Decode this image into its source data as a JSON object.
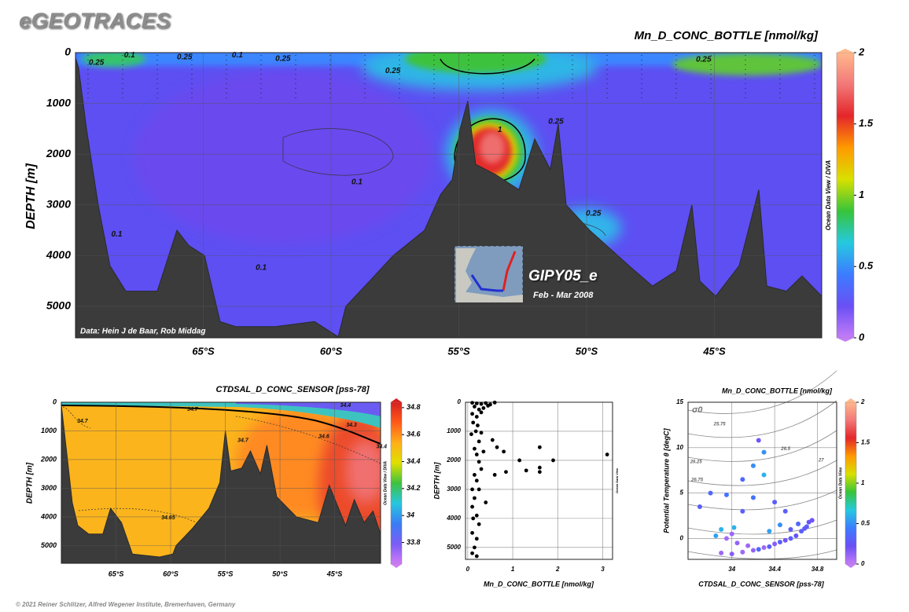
{
  "header": {
    "title": "eGEOTRACES"
  },
  "footer": {
    "text": "© 2021 Reiner Schlitzer, Alfred Wegener Institute, Bremerhaven, Germany"
  },
  "chart_data": [
    {
      "type": "section",
      "title": "Mn_D_CONC_BOTTLE [nmol/kg]",
      "y_label": "DEPTH [m]",
      "xlim": [
        -70,
        -40.8
      ],
      "xticks": [
        {
          "value": -65,
          "label": "65°S"
        },
        {
          "value": -60,
          "label": "60°S"
        },
        {
          "value": -55,
          "label": "55°S"
        },
        {
          "value": -50,
          "label": "50°S"
        },
        {
          "value": -45,
          "label": "45°S"
        }
      ],
      "ylim": [
        5620,
        0
      ],
      "yticks": [
        0,
        1000,
        2000,
        3000,
        4000,
        5000
      ],
      "grid": true,
      "colorbar": {
        "label": "Ocean Data View / DIVA",
        "lim": [
          0,
          2
        ],
        "ticks": [
          0,
          0.5,
          1,
          1.5,
          2
        ],
        "colors": [
          "#c47cf7",
          "#6a4ff5",
          "#3c7cff",
          "#25c9e0",
          "#37c43a",
          "#d8e000",
          "#ff9a00",
          "#e4262a",
          "#f27878",
          "#ffb88c"
        ]
      },
      "bathymetry": {
        "x": [
          -70,
          -69.88,
          -69.57,
          -69.11,
          -68.65,
          -68.03,
          -66.8,
          -66.03,
          -65.57,
          -64.95,
          -64.34,
          -63.72,
          -62.18,
          -60.65,
          -59.72,
          -59.42,
          -58.49,
          -57.57,
          -56.34,
          -55.72,
          -55.26,
          -54.95,
          -54.65,
          -54.34,
          -53.57,
          -52.65,
          -52.03,
          -51.42,
          -51.11,
          -50.8,
          -49.88,
          -48.34,
          -47.42,
          -46.49,
          -45.88,
          -45.57,
          -44.95,
          -44.03,
          -43.26,
          -42.95,
          -42.18,
          -41.57,
          -40.8
        ],
        "depth": [
          100,
          300,
          1500,
          3000,
          4200,
          4700,
          4700,
          3500,
          3800,
          4000,
          5300,
          5400,
          5400,
          5300,
          5600,
          5000,
          4500,
          4000,
          3500,
          2800,
          2500,
          1500,
          950,
          2200,
          2400,
          2700,
          1700,
          2300,
          1400,
          3000,
          3500,
          4200,
          4600,
          4300,
          3000,
          4500,
          4800,
          4200,
          2700,
          4600,
          4700,
          4400,
          4800
        ]
      },
      "contour_labels": [
        {
          "x": -69.48,
          "y": 200,
          "value": 0.25
        },
        {
          "x": -68.1,
          "y": 50,
          "value": 0.1
        },
        {
          "x": -66.03,
          "y": 90,
          "value": 0.25
        },
        {
          "x": -63.88,
          "y": 50,
          "value": 0.1
        },
        {
          "x": -62.18,
          "y": 120,
          "value": 0.25
        },
        {
          "x": -57.88,
          "y": 360,
          "value": 0.25
        },
        {
          "x": -45.72,
          "y": 140,
          "value": 0.25
        },
        {
          "x": -51.5,
          "y": 1360,
          "value": 0.25
        },
        {
          "x": -53.48,
          "y": 1520,
          "value": 1
        },
        {
          "x": -59.2,
          "y": 2550,
          "value": 0.1
        },
        {
          "x": -50.03,
          "y": 3170,
          "value": 0.25
        },
        {
          "x": -68.6,
          "y": 3580,
          "value": 0.1
        },
        {
          "x": -62.95,
          "y": 4240,
          "value": 0.1
        }
      ],
      "annotations": [
        "Data: Hein J de Baar, Rob Middag"
      ],
      "inset": {
        "title": "GIPY05_e",
        "subtitle": "Feb - Mar 2008"
      }
    },
    {
      "type": "section",
      "title": "CTDSAL_D_CONC_SENSOR [pss-78]",
      "y_label": "DEPTH [m]",
      "xlim": [
        -70,
        -40.8
      ],
      "xticks": [
        {
          "value": -65,
          "label": "65°S"
        },
        {
          "value": -60,
          "label": "60°S"
        },
        {
          "value": -55,
          "label": "55°S"
        },
        {
          "value": -50,
          "label": "50°S"
        },
        {
          "value": -45,
          "label": "45°S"
        }
      ],
      "ylim": [
        5620,
        0
      ],
      "yticks": [
        0,
        1000,
        2000,
        3000,
        4000,
        5000
      ],
      "grid": true,
      "colorbar": {
        "label": "Ocean Data View / DIVA",
        "lim": [
          33.64,
          34.84
        ],
        "ticks": [
          33.8,
          34,
          34.2,
          34.4,
          34.6,
          34.8
        ],
        "colors": [
          "#d07cf5",
          "#7a5cf5",
          "#3a7df5",
          "#27c6df",
          "#3fc13f",
          "#dfe000",
          "#ffae1a",
          "#ff5a1a",
          "#d62020"
        ]
      },
      "bathymetry": {
        "x": [
          -70,
          -69.5,
          -69,
          -68.5,
          -67.5,
          -66.2,
          -65.5,
          -64.5,
          -63.5,
          -61,
          -59.8,
          -59.5,
          -58,
          -56.5,
          -55.5,
          -55,
          -54.5,
          -53.5,
          -52.7,
          -51.8,
          -51.2,
          -50.3,
          -48.5,
          -46.5,
          -45.5,
          -44,
          -43.2,
          -42.3,
          -41.5,
          -40.8
        ],
        "depth": [
          100,
          1800,
          3500,
          4300,
          4600,
          4600,
          3700,
          4200,
          5300,
          5400,
          5300,
          5000,
          4400,
          3700,
          2800,
          1000,
          2400,
          2300,
          1700,
          2500,
          1500,
          3300,
          4000,
          4200,
          2900,
          4300,
          3400,
          4200,
          3800,
          4600
        ]
      },
      "contour_labels": [
        {
          "x": -68.56,
          "y": 660,
          "value": 34.7
        },
        {
          "x": -58.49,
          "y": 250,
          "value": 34.7
        },
        {
          "x": -53.88,
          "y": 1330,
          "value": 34.7
        },
        {
          "x": -46.47,
          "y": 1190,
          "value": 34.6
        },
        {
          "x": -43.95,
          "y": 800,
          "value": 34.3
        },
        {
          "x": -41.2,
          "y": 1550,
          "value": 34.4
        },
        {
          "x": -44.5,
          "y": 110,
          "value": 34.4
        },
        {
          "x": -60.86,
          "y": 4030,
          "value": 34.65
        }
      ]
    },
    {
      "type": "scatter",
      "x_label": "Mn_D_CONC_BOTTLE [nmol/kg]",
      "y_label": "DEPTH [m]",
      "watermark": "Ocean Data View",
      "xlim": [
        -0.05,
        3.22
      ],
      "xticks": [
        0,
        1,
        2,
        3
      ],
      "ylim": [
        5410,
        0
      ],
      "yticks": [
        0,
        1000,
        2000,
        3000,
        4000,
        5000
      ],
      "grid": true,
      "color": "#000000",
      "x": [
        0.1,
        0.2,
        0.3,
        0.4,
        0.5,
        0.6,
        0.15,
        0.25,
        0.35,
        0.45,
        0.1,
        0.2,
        0.3,
        0.12,
        0.22,
        0.18,
        0.08,
        0.3,
        0.55,
        0.25,
        0.65,
        0.15,
        0.35,
        0.8,
        0.2,
        1.15,
        0.25,
        1.6,
        1.9,
        3.1,
        1.6,
        1.6,
        1.3,
        0.85,
        0.3,
        0.15,
        0.6,
        0.2,
        0.1,
        0.25,
        0.15,
        0.4,
        0.1,
        0.2,
        0.12,
        0.25,
        0.1,
        0.2,
        0.15,
        0.1,
        0.2
      ],
      "y": [
        20,
        40,
        60,
        30,
        80,
        10,
        150,
        250,
        200,
        120,
        400,
        500,
        350,
        700,
        800,
        1000,
        1100,
        1050,
        1300,
        1350,
        1550,
        1600,
        1700,
        1700,
        1800,
        2000,
        2050,
        1550,
        2000,
        1800,
        2250,
        2400,
        2350,
        2400,
        2300,
        2500,
        2500,
        2700,
        3000,
        3000,
        3300,
        3450,
        3600,
        3900,
        4000,
        4200,
        4500,
        4700,
        5000,
        5200,
        5300
      ]
    },
    {
      "type": "scatter",
      "title": "Mn_D_CONC_BOTTLE [nmol/kg]",
      "x_label": "CTDSAL_D_CONC_SENSOR [pss-78]",
      "y_label": "Potential Temperature θ [degC]",
      "xlim": [
        33.59,
        34.98
      ],
      "xticks": [
        34,
        34.4,
        34.8
      ],
      "ylim": [
        -2.3,
        15
      ],
      "yticks": [
        0,
        5,
        10,
        15
      ],
      "grid": true,
      "colorbar": {
        "label": "Ocean Data View",
        "lim": [
          0,
          2
        ],
        "ticks": [
          0,
          0.5,
          1,
          1.5,
          2
        ],
        "colors": [
          "#c47cf7",
          "#6a4ff5",
          "#3c7cff",
          "#25c9e0",
          "#37c43a",
          "#d8e000",
          "#ff9a00",
          "#e4262a",
          "#f27878",
          "#ffb88c"
        ]
      },
      "density_symbol": "σ0",
      "density_labels": [
        {
          "x": 33.83,
          "y": 12.6,
          "value": 25.75
        },
        {
          "x": 33.61,
          "y": 8.45,
          "value": 26.25
        },
        {
          "x": 33.62,
          "y": 6.45,
          "value": 26.75
        },
        {
          "x": 34.46,
          "y": 9.85,
          "value": 26.5
        },
        {
          "x": 34.81,
          "y": 8.6,
          "value": 27
        }
      ],
      "x": [
        33.9,
        34.0,
        34.1,
        34.2,
        34.3,
        34.4,
        34.5,
        34.6,
        34.65,
        34.7,
        34.72,
        34.75,
        34.68,
        34.55,
        34.45,
        34.35,
        34.25,
        34.0,
        33.95,
        34.05,
        33.85,
        33.9,
        34.02,
        33.95,
        34.1,
        34.2,
        34.3,
        34.25,
        34.3,
        34.2,
        34.4,
        34.5,
        34.1,
        33.8,
        33.7,
        34.45,
        34.35,
        34.15,
        34.55,
        34.62
      ],
      "y": [
        -1.6,
        -1.7,
        -1.5,
        -1.3,
        -1.0,
        -0.6,
        -0.2,
        0.3,
        0.8,
        1.3,
        1.8,
        2.0,
        1.1,
        0,
        -0.4,
        -0.9,
        -1.2,
        0.5,
        0,
        -0.5,
        0.3,
        1.0,
        1.2,
        4.8,
        6.5,
        8.0,
        9.5,
        10.8,
        7.0,
        4.5,
        4.0,
        3.0,
        3.0,
        5.0,
        3.5,
        1.5,
        0.8,
        -0.8,
        1.0,
        1.6
      ],
      "color_values": [
        0.1,
        0.15,
        0.1,
        0.12,
        0.1,
        0.15,
        0.2,
        0.25,
        0.3,
        0.3,
        0.25,
        0.2,
        0.28,
        0.3,
        0.3,
        0.3,
        0.35,
        0.1,
        0.08,
        0.12,
        0.55,
        0.6,
        0.6,
        0.4,
        0.35,
        0.5,
        0.5,
        0.2,
        0.6,
        0.4,
        0.3,
        0.3,
        0.3,
        0.35,
        0.3,
        0.5,
        0.55,
        0.1,
        0.3,
        0.35
      ]
    }
  ]
}
